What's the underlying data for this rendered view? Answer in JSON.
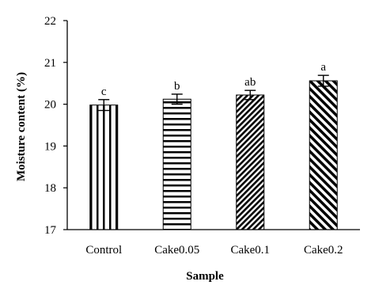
{
  "chart_data": {
    "type": "bar",
    "categories": [
      "Control",
      "Cake0.05",
      "Cake0.1",
      "Cake0.2"
    ],
    "values": [
      19.98,
      20.12,
      20.22,
      20.56
    ],
    "errors": [
      0.13,
      0.12,
      0.11,
      0.13
    ],
    "significance_labels": [
      "c",
      "b",
      "ab",
      "a"
    ],
    "patterns": [
      "vertical-lines",
      "horizontal-lines",
      "diagonal-dense",
      "diagonal-wide"
    ],
    "xlabel": "Sample",
    "ylabel": "Moisture content (%)",
    "ylim": [
      17,
      22
    ],
    "yticks": [
      "17",
      "18",
      "19",
      "20",
      "21",
      "22"
    ],
    "grid": false,
    "legend": "none",
    "colors": {
      "bar_stroke": "#000000",
      "bar_fill": "#ffffff",
      "pattern": "#000000"
    }
  }
}
